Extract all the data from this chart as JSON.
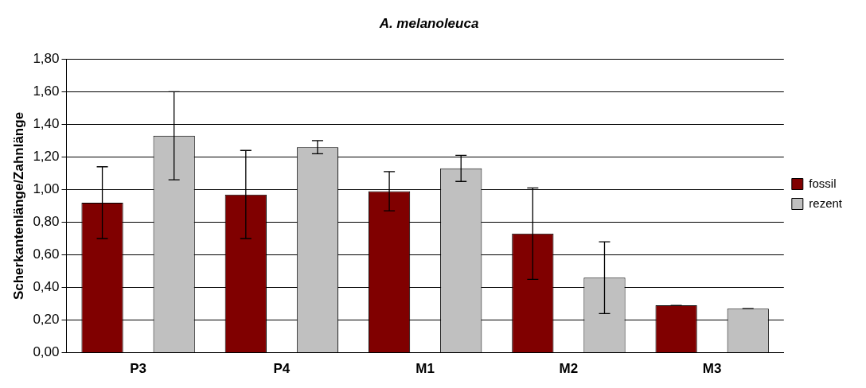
{
  "chart_data": {
    "type": "bar",
    "title": "A. melanoleuca",
    "ylabel": "Scherkantenlänge/Zahnlänge",
    "categories": [
      "P3",
      "P4",
      "M1",
      "M2",
      "M3"
    ],
    "series": [
      {
        "name": "fossil",
        "color": "#800000",
        "values": [
          0.92,
          0.97,
          0.99,
          0.73,
          0.29
        ],
        "errors": [
          0.22,
          0.27,
          0.12,
          0.28,
          0
        ]
      },
      {
        "name": "rezent",
        "color": "#c0c0c0",
        "values": [
          1.33,
          1.26,
          1.13,
          0.46,
          0.27
        ],
        "errors": [
          0.27,
          0.04,
          0.08,
          0.22,
          0
        ]
      }
    ],
    "ylim": [
      0,
      1.8
    ],
    "yticks": [
      {
        "value": 0,
        "label": "0,00"
      },
      {
        "value": 0.2,
        "label": "0,20"
      },
      {
        "value": 0.4,
        "label": "0,40"
      },
      {
        "value": 0.6,
        "label": "0,60"
      },
      {
        "value": 0.8,
        "label": "0,80"
      },
      {
        "value": 1,
        "label": "1,00"
      },
      {
        "value": 1.2,
        "label": "1,20"
      },
      {
        "value": 1.4,
        "label": "1,40"
      },
      {
        "value": 1.6,
        "label": "1,60"
      },
      {
        "value": 1.8,
        "label": "1,80"
      }
    ],
    "grid": "y",
    "legend": "right"
  }
}
